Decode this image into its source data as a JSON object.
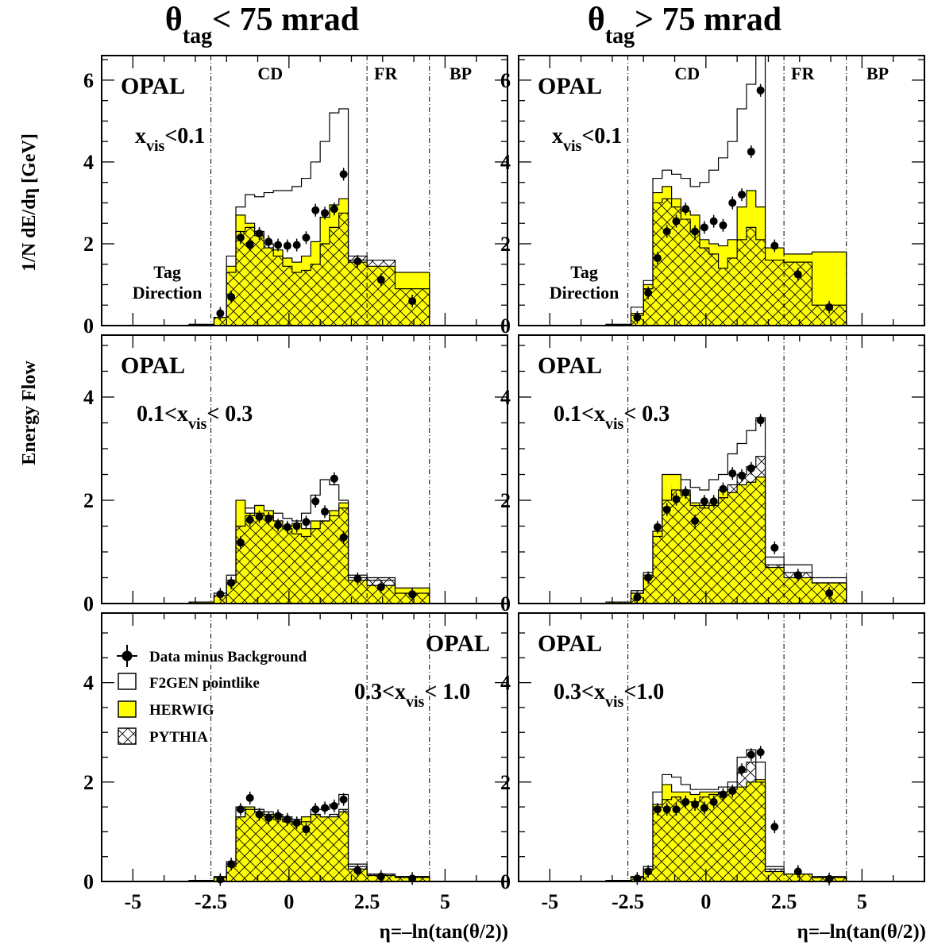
{
  "figure": {
    "column_titles": [
      {
        "theta": "θ",
        "sub": "tag",
        "rest": "< 75 mrad"
      },
      {
        "theta": "θ",
        "sub": "tag",
        "rest": "> 75 mrad"
      }
    ],
    "ylabel_top": "1/N dE/dη   [GeV]",
    "ylabel_bottom": "Energy Flow",
    "xlabel": "η=–ln(tan(θ/2))",
    "detector_labels": [
      "CD",
      "FR",
      "BP"
    ],
    "experiment": "OPAL",
    "tag_label_lines": [
      "Tag",
      "Direction"
    ],
    "colors": {
      "herwig_fill": "#ffff00",
      "lines": "#000000",
      "background": "#ffffff"
    }
  },
  "legend": {
    "items": [
      {
        "label": "Data minus Background",
        "icon": "data-point-icon"
      },
      {
        "label": "F2GEN pointlike",
        "icon": "open-box-icon"
      },
      {
        "label": "HERWIG",
        "icon": "yellow-box-icon"
      },
      {
        "label": "PYTHIA",
        "icon": "cross-hatch-box-icon"
      }
    ]
  },
  "chart_data": [
    {
      "type": "bar",
      "column": 0,
      "row": 0,
      "region_label": {
        "pre": "x",
        "sub": "vis",
        "post": "<0.1"
      },
      "xlim": [
        -6,
        7
      ],
      "ylim": [
        0,
        6.6
      ],
      "yticks": [
        0,
        2,
        4,
        6
      ],
      "detector_boundaries": [
        -2.5,
        2.5,
        4.5
      ],
      "bin_edges": [
        -3.2,
        -2.4,
        -2.0,
        -1.7,
        -1.4,
        -1.1,
        -0.8,
        -0.5,
        -0.2,
        0.1,
        0.4,
        0.7,
        1.0,
        1.3,
        1.6,
        1.9,
        2.5,
        3.4,
        4.5
      ],
      "data_x": [
        -2.2,
        -1.85,
        -1.55,
        -1.25,
        -0.95,
        -0.65,
        -0.35,
        -0.05,
        0.25,
        0.55,
        0.85,
        1.15,
        1.45,
        1.75,
        2.2,
        2.95,
        3.95
      ],
      "data_y": [
        0.3,
        0.7,
        2.15,
        1.98,
        2.25,
        2.05,
        1.97,
        1.95,
        1.97,
        2.15,
        2.82,
        2.75,
        2.85,
        3.7,
        1.57,
        1.12,
        0.6
      ],
      "series": [
        {
          "name": "F2GEN pointlike",
          "values": [
            0.03,
            0.2,
            1.7,
            2.9,
            3.2,
            3.15,
            3.25,
            3.3,
            3.3,
            3.4,
            3.6,
            4.0,
            4.5,
            5.2,
            5.3,
            1.6,
            1.3,
            1.1
          ]
        },
        {
          "name": "HERWIG",
          "values": [
            0.03,
            0.2,
            1.45,
            2.7,
            2.5,
            2.2,
            1.9,
            1.85,
            1.65,
            1.55,
            1.7,
            2.05,
            2.65,
            2.95,
            3.1,
            1.55,
            1.45,
            1.3
          ]
        },
        {
          "name": "PYTHIA",
          "values": [
            0.03,
            0.2,
            1.3,
            2.3,
            2.4,
            2.3,
            2.0,
            1.7,
            1.45,
            1.3,
            1.35,
            1.5,
            2.0,
            2.4,
            2.75,
            1.7,
            1.6,
            0.9
          ]
        }
      ]
    },
    {
      "type": "bar",
      "column": 1,
      "row": 0,
      "region_label": {
        "pre": "x",
        "sub": "vis",
        "post": "<0.1"
      },
      "xlim": [
        -6,
        7
      ],
      "ylim": [
        0,
        6.6
      ],
      "yticks": [
        0,
        2,
        4,
        6
      ],
      "detector_boundaries": [
        -2.5,
        2.5,
        4.5
      ],
      "bin_edges": [
        -3.2,
        -2.4,
        -2.0,
        -1.7,
        -1.4,
        -1.1,
        -0.8,
        -0.5,
        -0.2,
        0.1,
        0.4,
        0.7,
        1.0,
        1.3,
        1.6,
        1.9,
        2.5,
        3.4,
        4.5
      ],
      "data_x": [
        -2.2,
        -1.85,
        -1.55,
        -1.25,
        -0.95,
        -0.65,
        -0.35,
        -0.05,
        0.25,
        0.55,
        0.85,
        1.15,
        1.45,
        1.75,
        2.2,
        2.95,
        3.95
      ],
      "data_y": [
        0.2,
        0.8,
        1.65,
        2.3,
        2.55,
        2.85,
        2.3,
        2.4,
        2.55,
        2.45,
        3.0,
        3.2,
        4.25,
        5.75,
        1.95,
        1.25,
        0.45
      ],
      "series": [
        {
          "name": "F2GEN pointlike",
          "values": [
            0.03,
            0.45,
            1.1,
            3.6,
            3.8,
            3.7,
            3.6,
            3.4,
            3.5,
            3.8,
            4.1,
            4.5,
            5.3,
            5.9,
            6.6,
            1.5,
            1.3,
            1.1
          ]
        },
        {
          "name": "HERWIG",
          "values": [
            0.03,
            0.3,
            1.0,
            3.25,
            3.4,
            3.1,
            2.8,
            2.7,
            2.1,
            2.0,
            1.95,
            2.1,
            2.9,
            3.3,
            2.9,
            1.9,
            1.75,
            1.8
          ]
        },
        {
          "name": "PYTHIA",
          "values": [
            0.03,
            0.25,
            0.9,
            3.0,
            3.1,
            2.9,
            2.6,
            2.3,
            1.9,
            1.75,
            1.4,
            1.65,
            2.1,
            2.4,
            2.1,
            1.6,
            1.55,
            0.5
          ]
        }
      ]
    },
    {
      "type": "bar",
      "column": 0,
      "row": 1,
      "region_label": {
        "pre": "0.1<x",
        "sub": "vis",
        "post": "< 0.3"
      },
      "xlim": [
        -6,
        7
      ],
      "ylim": [
        0,
        5.2
      ],
      "yticks": [
        0,
        2,
        4
      ],
      "detector_boundaries": [
        -2.5,
        2.5,
        4.5
      ],
      "bin_edges": [
        -3.2,
        -2.4,
        -2.0,
        -1.7,
        -1.4,
        -1.1,
        -0.8,
        -0.5,
        -0.2,
        0.1,
        0.4,
        0.7,
        1.0,
        1.3,
        1.6,
        1.9,
        2.5,
        3.4,
        4.5
      ],
      "data_x": [
        -2.2,
        -1.85,
        -1.55,
        -1.25,
        -0.95,
        -0.65,
        -0.35,
        -0.05,
        0.25,
        0.55,
        0.85,
        1.15,
        1.45,
        1.75,
        2.2,
        2.95,
        3.95
      ],
      "data_y": [
        0.18,
        0.4,
        1.18,
        1.62,
        1.68,
        1.65,
        1.52,
        1.48,
        1.5,
        1.58,
        1.98,
        1.78,
        2.42,
        1.28,
        0.48,
        0.32,
        0.18
      ],
      "series": [
        {
          "name": "F2GEN pointlike",
          "values": [
            0.03,
            0.2,
            0.55,
            1.6,
            1.85,
            1.9,
            1.8,
            1.75,
            1.65,
            1.6,
            1.75,
            2.1,
            2.4,
            2.3,
            2.0,
            0.55,
            0.45,
            0.3
          ]
        },
        {
          "name": "HERWIG",
          "values": [
            0.03,
            0.15,
            0.45,
            2.0,
            1.75,
            1.9,
            1.8,
            1.6,
            1.5,
            1.55,
            1.45,
            1.6,
            1.6,
            1.8,
            1.95,
            0.45,
            0.35,
            0.3
          ]
        },
        {
          "name": "PYTHIA",
          "values": [
            0.03,
            0.15,
            0.4,
            1.5,
            1.7,
            1.75,
            1.7,
            1.6,
            1.45,
            1.35,
            1.3,
            1.45,
            1.6,
            1.7,
            1.85,
            0.5,
            0.5,
            0.2
          ]
        }
      ]
    },
    {
      "type": "bar",
      "column": 1,
      "row": 1,
      "region_label": {
        "pre": "0.1<x",
        "sub": "vis",
        "post": "< 0.3"
      },
      "xlim": [
        -6,
        7
      ],
      "ylim": [
        0,
        5.2
      ],
      "yticks": [
        0,
        2,
        4
      ],
      "detector_boundaries": [
        -2.5,
        2.5,
        4.5
      ],
      "bin_edges": [
        -3.2,
        -2.4,
        -2.0,
        -1.7,
        -1.4,
        -1.1,
        -0.8,
        -0.5,
        -0.2,
        0.1,
        0.4,
        0.7,
        1.0,
        1.3,
        1.6,
        1.9,
        2.5,
        3.4,
        4.5
      ],
      "data_x": [
        -2.2,
        -1.85,
        -1.55,
        -1.25,
        -0.95,
        -0.65,
        -0.35,
        -0.05,
        0.25,
        0.55,
        0.85,
        1.15,
        1.45,
        1.75,
        2.2,
        2.95,
        3.95
      ],
      "data_y": [
        0.12,
        0.5,
        1.48,
        1.82,
        2.02,
        2.15,
        1.6,
        1.98,
        1.98,
        2.22,
        2.52,
        2.48,
        2.62,
        3.55,
        1.08,
        0.55,
        0.2
      ],
      "series": [
        {
          "name": "F2GEN pointlike",
          "values": [
            0.03,
            0.25,
            0.6,
            1.4,
            2.2,
            2.3,
            2.4,
            2.25,
            2.2,
            2.4,
            2.5,
            2.9,
            3.1,
            3.35,
            3.6,
            0.9,
            0.75,
            0.5
          ]
        },
        {
          "name": "HERWIG",
          "values": [
            0.03,
            0.2,
            0.55,
            1.4,
            2.5,
            2.5,
            2.2,
            1.95,
            1.9,
            1.95,
            2.2,
            2.15,
            2.3,
            2.35,
            2.45,
            0.7,
            0.5,
            0.4
          ]
        },
        {
          "name": "PYTHIA",
          "values": [
            0.03,
            0.2,
            0.5,
            1.3,
            2.0,
            2.2,
            2.1,
            1.9,
            1.85,
            1.9,
            2.05,
            2.3,
            2.5,
            2.65,
            2.85,
            0.75,
            0.6,
            0.4
          ]
        }
      ]
    },
    {
      "type": "bar",
      "column": 0,
      "row": 2,
      "region_label": {
        "pre": "0.3<x",
        "sub": "vis",
        "post": "< 1.0"
      },
      "xlim": [
        -6,
        7
      ],
      "ylim": [
        0,
        5.4
      ],
      "yticks": [
        0,
        2,
        4
      ],
      "detector_boundaries": [
        -2.5,
        2.5,
        4.5
      ],
      "bin_edges": [
        -3.2,
        -2.4,
        -2.0,
        -1.7,
        -1.4,
        -1.1,
        -0.8,
        -0.5,
        -0.2,
        0.1,
        0.4,
        0.7,
        1.0,
        1.3,
        1.6,
        1.9,
        2.5,
        3.4,
        4.5
      ],
      "data_x": [
        -2.2,
        -1.85,
        -1.55,
        -1.25,
        -0.95,
        -0.65,
        -0.35,
        -0.05,
        0.25,
        0.55,
        0.85,
        1.15,
        1.45,
        1.75,
        2.2,
        2.95,
        3.95
      ],
      "data_y": [
        0.04,
        0.35,
        1.45,
        1.68,
        1.35,
        1.28,
        1.32,
        1.25,
        1.18,
        1.05,
        1.45,
        1.48,
        1.52,
        1.65,
        0.22,
        0.1,
        0.06
      ],
      "series": [
        {
          "name": "F2GEN pointlike",
          "values": [
            0.02,
            0.1,
            0.4,
            1.5,
            1.5,
            1.45,
            1.4,
            1.35,
            1.3,
            1.25,
            1.2,
            1.45,
            1.45,
            1.55,
            1.75,
            0.35,
            0.15,
            0.1
          ]
        },
        {
          "name": "HERWIG",
          "values": [
            0.02,
            0.08,
            0.35,
            1.3,
            1.5,
            1.4,
            1.35,
            1.3,
            1.25,
            1.2,
            1.3,
            1.35,
            1.3,
            1.3,
            1.4,
            0.25,
            0.12,
            0.08
          ]
        },
        {
          "name": "PYTHIA",
          "values": [
            0.02,
            0.08,
            0.3,
            1.3,
            1.45,
            1.4,
            1.3,
            1.25,
            1.2,
            1.15,
            1.2,
            1.35,
            1.3,
            1.35,
            1.45,
            0.3,
            0.15,
            0.1
          ]
        }
      ]
    },
    {
      "type": "bar",
      "column": 1,
      "row": 2,
      "region_label": {
        "pre": "0.3<x",
        "sub": "vis",
        "post": "<1.0"
      },
      "xlim": [
        -6,
        7
      ],
      "ylim": [
        0,
        5.4
      ],
      "yticks": [
        0,
        2,
        4
      ],
      "detector_boundaries": [
        -2.5,
        2.5,
        4.5
      ],
      "bin_edges": [
        -3.2,
        -2.4,
        -2.0,
        -1.7,
        -1.4,
        -1.1,
        -0.8,
        -0.5,
        -0.2,
        0.1,
        0.4,
        0.7,
        1.0,
        1.3,
        1.6,
        1.9,
        2.5,
        3.4,
        4.5
      ],
      "data_x": [
        -2.2,
        -1.85,
        -1.55,
        -1.25,
        -0.95,
        -0.65,
        -0.35,
        -0.05,
        0.25,
        0.55,
        0.85,
        1.15,
        1.45,
        1.75,
        2.2,
        2.95,
        3.95
      ],
      "data_y": [
        0.06,
        0.2,
        1.45,
        1.45,
        1.45,
        1.6,
        1.55,
        1.48,
        1.6,
        1.75,
        1.82,
        2.25,
        2.55,
        2.6,
        1.1,
        0.2,
        0.05
      ],
      "series": [
        {
          "name": "F2GEN pointlike",
          "values": [
            0.02,
            0.1,
            0.3,
            1.8,
            2.15,
            2.1,
            1.95,
            1.85,
            1.85,
            1.85,
            1.9,
            2.0,
            2.5,
            2.65,
            2.4,
            0.3,
            0.15,
            0.1
          ]
        },
        {
          "name": "HERWIG",
          "values": [
            0.02,
            0.08,
            0.25,
            1.55,
            1.95,
            1.8,
            1.8,
            1.75,
            1.8,
            1.8,
            1.8,
            1.85,
            1.9,
            2.0,
            2.05,
            0.2,
            0.15,
            0.08
          ]
        },
        {
          "name": "PYTHIA",
          "values": [
            0.02,
            0.08,
            0.25,
            1.5,
            1.65,
            1.7,
            1.6,
            1.6,
            1.7,
            1.75,
            1.8,
            1.9,
            2.2,
            2.4,
            2.0,
            0.25,
            0.15,
            0.08
          ]
        }
      ]
    }
  ]
}
